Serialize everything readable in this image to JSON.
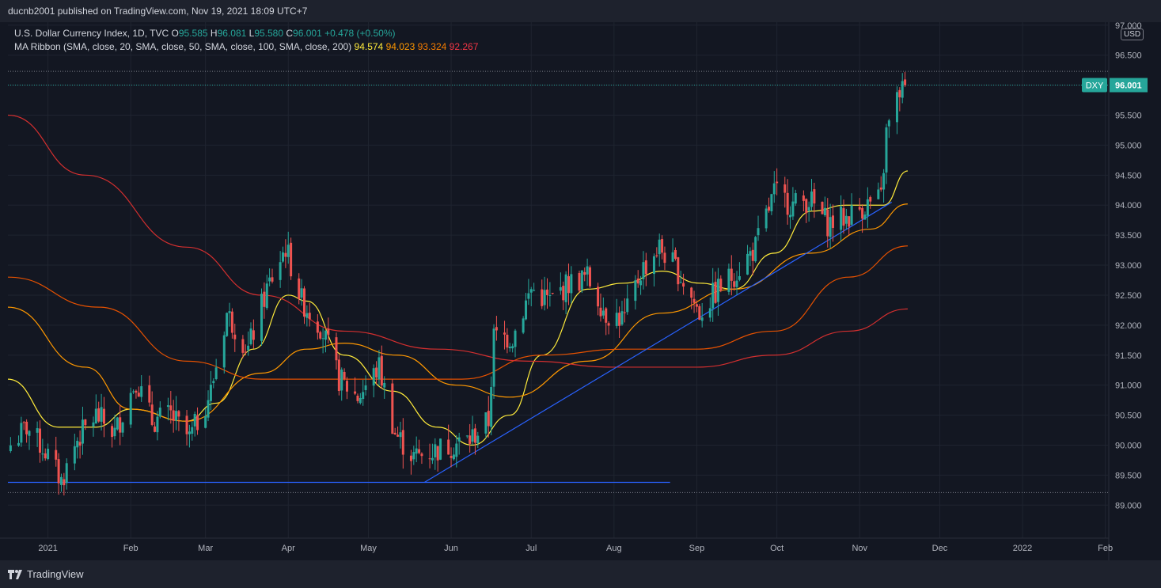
{
  "header": {
    "publisher_line": "ducnb2001 published on TradingView.com, Nov 19, 2021 18:09 UTC+7"
  },
  "legend": {
    "symbol_line": "U.S. Dollar Currency Index, 1D, TVC",
    "ohlc": [
      {
        "label": "O",
        "value": "95.585"
      },
      {
        "label": "H",
        "value": "96.081"
      },
      {
        "label": "L",
        "value": "95.580"
      },
      {
        "label": "C",
        "value": "96.001"
      }
    ],
    "change": "+0.478 (+0.50%)",
    "ma_label": "MA Ribbon (SMA, close, 20, SMA, close, 50, SMA, close, 100, SMA, close, 200)",
    "ma_values": [
      {
        "value": "94.574",
        "color": "#ffeb3b"
      },
      {
        "value": "94.023",
        "color": "#ff9800"
      },
      {
        "value": "93.324",
        "color": "#f57c00"
      },
      {
        "value": "92.267",
        "color": "#f23645"
      }
    ]
  },
  "axis": {
    "currency": "USD",
    "ticker_badge": "DXY",
    "price_badge": "96.001"
  },
  "footer": {
    "brand": "TradingView"
  },
  "colors": {
    "up": "#26a69a",
    "down": "#ef5350",
    "ma20": "#ffeb3b",
    "ma50": "#ff9800",
    "ma100": "#e65100",
    "ma200": "#d32f2f",
    "trendline": "#2962ff"
  },
  "chart_data": {
    "type": "candlestick",
    "y_ticks": [
      "97.000",
      "96.500",
      "96.000",
      "95.500",
      "95.000",
      "94.500",
      "94.000",
      "93.500",
      "93.000",
      "92.500",
      "92.000",
      "91.500",
      "91.000",
      "90.500",
      "90.000",
      "89.500",
      "89.000"
    ],
    "ylim": [
      88.45,
      97.05
    ],
    "x_ticks": [
      "2021",
      "Feb",
      "Mar",
      "Apr",
      "May",
      "Jun",
      "Jul",
      "Aug",
      "Sep",
      "Oct",
      "Nov",
      "Dec",
      "2022",
      "Feb"
    ],
    "x_tick_dates": [
      "2021-01-01",
      "2021-02-01",
      "2021-03-01",
      "2021-04-01",
      "2021-05-01",
      "2021-06-01",
      "2021-07-01",
      "2021-08-01",
      "2021-09-01",
      "2021-10-01",
      "2021-11-01",
      "2021-12-01",
      "2022-01-01",
      "2022-02-01"
    ],
    "xlim": [
      "2020-12-17",
      "2022-02-02"
    ],
    "close_path": [
      [
        "2020-12-18",
        90.0
      ],
      [
        "2020-12-24",
        90.3
      ],
      [
        "2020-12-31",
        89.9
      ],
      [
        "2021-01-06",
        89.4
      ],
      [
        "2021-01-12",
        90.1
      ],
      [
        "2021-01-19",
        90.5
      ],
      [
        "2021-01-26",
        90.2
      ],
      [
        "2021-02-03",
        91.1
      ],
      [
        "2021-02-09",
        90.4
      ],
      [
        "2021-02-16",
        90.5
      ],
      [
        "2021-02-23",
        90.1
      ],
      [
        "2021-03-03",
        90.9
      ],
      [
        "2021-03-09",
        92.2
      ],
      [
        "2021-03-17",
        91.6
      ],
      [
        "2021-03-24",
        92.6
      ],
      [
        "2021-03-31",
        93.3
      ],
      [
        "2021-04-06",
        92.4
      ],
      [
        "2021-04-13",
        92.0
      ],
      [
        "2021-04-20",
        91.1
      ],
      [
        "2021-04-27",
        90.8
      ],
      [
        "2021-05-05",
        91.3
      ],
      [
        "2021-05-11",
        90.2
      ],
      [
        "2021-05-18",
        89.8
      ],
      [
        "2021-05-25",
        89.9
      ],
      [
        "2021-06-01",
        90.0
      ],
      [
        "2021-06-08",
        90.1
      ],
      [
        "2021-06-15",
        90.4
      ],
      [
        "2021-06-17",
        91.8
      ],
      [
        "2021-06-24",
        91.8
      ],
      [
        "2021-07-01",
        92.6
      ],
      [
        "2021-07-08",
        92.4
      ],
      [
        "2021-07-15",
        92.7
      ],
      [
        "2021-07-22",
        92.8
      ],
      [
        "2021-07-29",
        92.2
      ],
      [
        "2021-08-05",
        92.1
      ],
      [
        "2021-08-11",
        92.9
      ],
      [
        "2021-08-18",
        93.3
      ],
      [
        "2021-08-25",
        92.9
      ],
      [
        "2021-09-02",
        92.2
      ],
      [
        "2021-09-09",
        92.6
      ],
      [
        "2021-09-16",
        92.9
      ],
      [
        "2021-09-23",
        93.3
      ],
      [
        "2021-09-30",
        94.2
      ],
      [
        "2021-10-07",
        94.0
      ],
      [
        "2021-10-13",
        94.1
      ],
      [
        "2021-10-20",
        93.7
      ],
      [
        "2021-10-27",
        93.8
      ],
      [
        "2021-11-03",
        94.0
      ],
      [
        "2021-11-09",
        94.1
      ],
      [
        "2021-11-11",
        95.2
      ],
      [
        "2021-11-16",
        95.9
      ],
      [
        "2021-11-18",
        96.0
      ]
    ],
    "series": [
      {
        "name": "SMA 20",
        "color": "#ffeb3b",
        "points": [
          [
            "2020-12-17",
            91.1
          ],
          [
            "2021-01-05",
            90.3
          ],
          [
            "2021-01-19",
            90.3
          ],
          [
            "2021-02-01",
            90.6
          ],
          [
            "2021-02-22",
            90.4
          ],
          [
            "2021-03-05",
            90.7
          ],
          [
            "2021-03-19",
            91.6
          ],
          [
            "2021-04-01",
            92.5
          ],
          [
            "2021-04-08",
            92.4
          ],
          [
            "2021-04-22",
            91.5
          ],
          [
            "2021-05-10",
            90.9
          ],
          [
            "2021-05-27",
            90.3
          ],
          [
            "2021-06-09",
            90.0
          ],
          [
            "2021-06-23",
            90.5
          ],
          [
            "2021-07-05",
            91.5
          ],
          [
            "2021-07-22",
            92.6
          ],
          [
            "2021-08-05",
            92.7
          ],
          [
            "2021-08-19",
            92.9
          ],
          [
            "2021-09-02",
            92.7
          ],
          [
            "2021-09-15",
            92.6
          ],
          [
            "2021-09-30",
            93.2
          ],
          [
            "2021-10-14",
            93.9
          ],
          [
            "2021-10-27",
            94.0
          ],
          [
            "2021-11-10",
            94.0
          ],
          [
            "2021-11-19",
            94.57
          ]
        ]
      },
      {
        "name": "SMA 50",
        "color": "#ff9800",
        "points": [
          [
            "2020-12-17",
            92.3
          ],
          [
            "2021-01-15",
            91.3
          ],
          [
            "2021-02-01",
            90.6
          ],
          [
            "2021-02-22",
            90.4
          ],
          [
            "2021-03-22",
            91.2
          ],
          [
            "2021-04-08",
            91.6
          ],
          [
            "2021-04-22",
            91.7
          ],
          [
            "2021-05-12",
            91.5
          ],
          [
            "2021-06-03",
            91.0
          ],
          [
            "2021-06-23",
            90.8
          ],
          [
            "2021-07-22",
            91.4
          ],
          [
            "2021-08-19",
            92.2
          ],
          [
            "2021-09-15",
            92.6
          ],
          [
            "2021-10-14",
            93.2
          ],
          [
            "2021-11-05",
            93.6
          ],
          [
            "2021-11-19",
            94.02
          ]
        ]
      },
      {
        "name": "SMA 100",
        "color": "#e65100",
        "points": [
          [
            "2020-12-17",
            92.8
          ],
          [
            "2021-01-20",
            92.3
          ],
          [
            "2021-02-22",
            91.4
          ],
          [
            "2021-03-22",
            91.1
          ],
          [
            "2021-05-01",
            91.1
          ],
          [
            "2021-06-05",
            91.1
          ],
          [
            "2021-07-05",
            91.5
          ],
          [
            "2021-08-05",
            91.6
          ],
          [
            "2021-09-01",
            91.6
          ],
          [
            "2021-09-30",
            91.9
          ],
          [
            "2021-10-28",
            92.8
          ],
          [
            "2021-11-19",
            93.32
          ]
        ]
      },
      {
        "name": "SMA 200",
        "color": "#d32f2f",
        "points": [
          [
            "2020-12-17",
            95.5
          ],
          [
            "2021-01-15",
            94.5
          ],
          [
            "2021-02-22",
            93.3
          ],
          [
            "2021-03-22",
            92.5
          ],
          [
            "2021-04-22",
            91.9
          ],
          [
            "2021-05-27",
            91.6
          ],
          [
            "2021-06-30",
            91.4
          ],
          [
            "2021-08-01",
            91.3
          ],
          [
            "2021-09-01",
            91.3
          ],
          [
            "2021-09-30",
            91.5
          ],
          [
            "2021-10-28",
            91.9
          ],
          [
            "2021-11-19",
            92.27
          ]
        ]
      }
    ],
    "trendlines": [
      {
        "from": [
          "2021-05-22",
          89.38
        ],
        "to": [
          "2021-11-13",
          94.05
        ],
        "color": "#2962ff"
      },
      {
        "from": [
          "2020-12-17",
          89.38
        ],
        "to": [
          "2021-08-22",
          89.38
        ],
        "color": "#2962ff"
      }
    ],
    "dotted_levels": [
      96.23,
      89.21
    ],
    "last_price": 96.001
  }
}
